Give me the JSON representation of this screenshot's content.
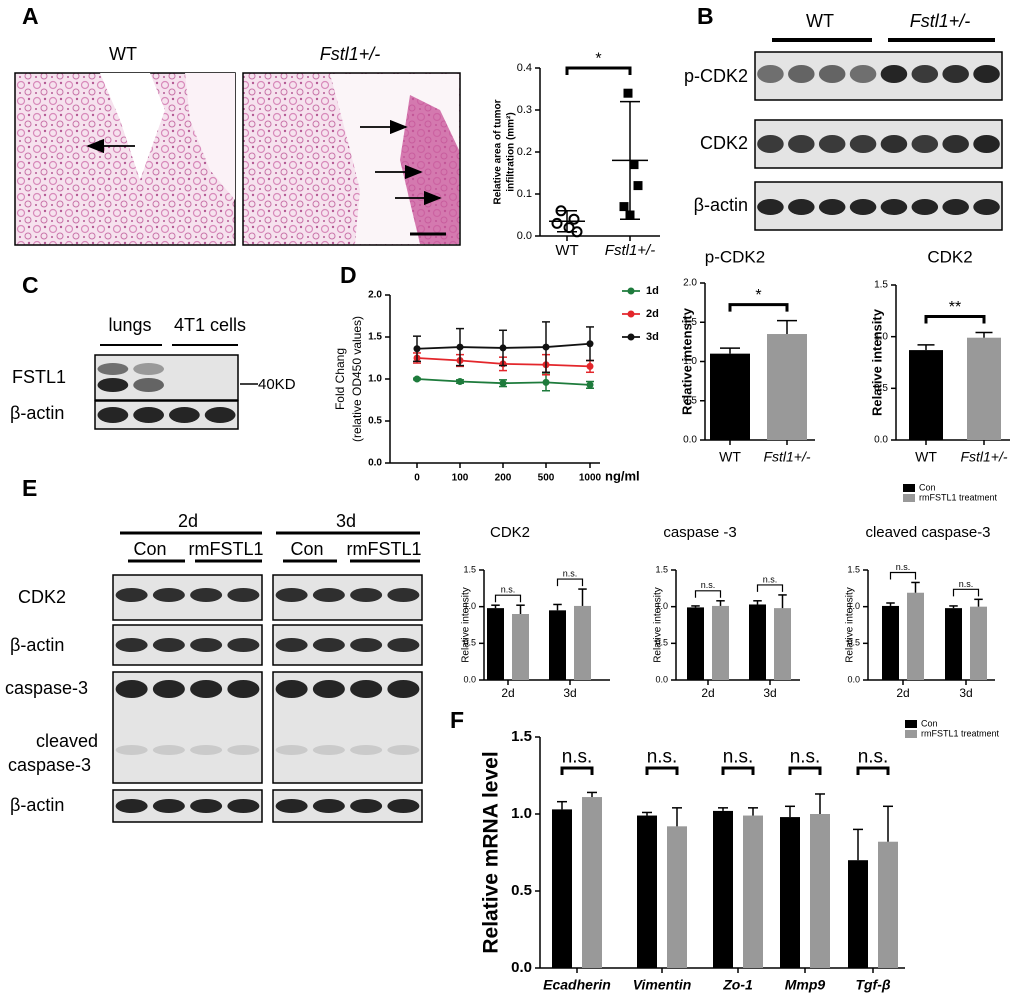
{
  "panel_labels": [
    "A",
    "B",
    "C",
    "D",
    "E",
    "F"
  ],
  "micrographs": {
    "labels": [
      "WT",
      "Fstl1+/-"
    ]
  },
  "blot_B": {
    "groups": [
      "WT",
      "Fstl1+/-"
    ],
    "rows": [
      "p-CDK2",
      "CDK2",
      "β-actin"
    ]
  },
  "blot_C": {
    "groups": [
      "lungs",
      "4T1 cells"
    ],
    "rows": [
      "FSTL1",
      "β-actin"
    ],
    "marker": "40KD"
  },
  "blot_E": {
    "days": [
      "2d",
      "3d"
    ],
    "groups": [
      "Con",
      "rmFSTL1",
      "Con",
      "rmFSTL1"
    ],
    "rows": [
      "CDK2",
      "β-actin",
      "caspase-3",
      [
        "cleaved",
        "caspase-3"
      ],
      "β-actin"
    ]
  },
  "chart_data": [
    {
      "type": "scatter",
      "ylabel": [
        "Relative area of tumor",
        "infiltration (mm²)"
      ],
      "categories": [
        "WT",
        "Fstl1+/-"
      ],
      "points": [
        [
          0.06,
          0.04,
          0.03,
          0.02,
          0.01
        ],
        [
          0.34,
          0.17,
          0.12,
          0.07,
          0.05
        ]
      ],
      "means": [
        0.035,
        0.18
      ],
      "errors": [
        0.025,
        0.14
      ],
      "significance": "*",
      "ylim": [
        0,
        0.4
      ],
      "yticks": [
        {
          "value": 0,
          "label": "0.0"
        },
        0.1,
        0.2,
        0.3,
        0.4
      ]
    },
    {
      "type": "bar",
      "title": "p-CDK2",
      "ylabel": [
        "Relative intensity"
      ],
      "categories": [
        "WT",
        "Fstl1+/-"
      ],
      "values": [
        1.1,
        1.35
      ],
      "errors": [
        0.07,
        0.17
      ],
      "colors": [
        "#000000",
        "#999999"
      ],
      "significance": "*",
      "ylim": [
        0,
        2
      ],
      "yticks": [
        {
          "value": 0,
          "label": "0.0"
        },
        0.5,
        {
          "value": 1,
          "label": "1.0"
        },
        1.5,
        {
          "value": 2,
          "label": "2.0"
        }
      ]
    },
    {
      "type": "bar",
      "title": "CDK2",
      "ylabel": [
        "Relative intensity"
      ],
      "categories": [
        "WT",
        "Fstl1+/-"
      ],
      "values": [
        0.87,
        0.99
      ],
      "errors": [
        0.05,
        0.05
      ],
      "colors": [
        "#000000",
        "#999999"
      ],
      "significance": "**",
      "ylim": [
        0,
        1.5
      ],
      "yticks": [
        {
          "value": 0,
          "label": "0.0"
        },
        0.5,
        {
          "value": 1,
          "label": "1.0"
        },
        1.5
      ]
    },
    {
      "type": "line",
      "ylabel": [
        "Fold Chang",
        "(relative OD450 values)"
      ],
      "xlabel": "ng/ml",
      "categories": [
        "0",
        "100",
        "200",
        "500",
        "1000"
      ],
      "series": [
        {
          "name": "1d",
          "color": "#1e7b3c",
          "values": [
            1.0,
            0.97,
            0.95,
            0.96,
            0.93
          ],
          "errors": [
            0.01,
            0.02,
            0.04,
            0.1,
            0.04
          ]
        },
        {
          "name": "2d",
          "color": "#e3262b",
          "values": [
            1.25,
            1.22,
            1.18,
            1.17,
            1.15
          ],
          "errors": [
            0.06,
            0.07,
            0.08,
            0.12,
            0.07
          ]
        },
        {
          "name": "3d",
          "color": "#111111",
          "values": [
            1.36,
            1.38,
            1.37,
            1.38,
            1.42
          ],
          "errors": [
            0.15,
            0.22,
            0.21,
            0.3,
            0.2
          ]
        }
      ],
      "ylim": [
        0,
        2
      ],
      "yticks": [
        {
          "value": 0,
          "label": "0.0"
        },
        0.5,
        {
          "value": 1,
          "label": "1.0"
        },
        1.5,
        {
          "value": 2,
          "label": "2.0"
        }
      ]
    },
    {
      "type": "bar",
      "title": "CDK2",
      "ylabel": [
        "Relative intensity"
      ],
      "categories": [
        "2d",
        "3d"
      ],
      "series": [
        {
          "color": "#000000",
          "values": [
            0.98,
            0.95
          ],
          "errors": [
            0.04,
            0.08
          ]
        },
        {
          "color": "#999999",
          "values": [
            0.9,
            1.01
          ],
          "errors": [
            0.12,
            0.23
          ]
        }
      ],
      "annotations": [
        "n.s.",
        "n.s."
      ],
      "ylim": [
        0,
        1.5
      ],
      "yticks": [
        {
          "value": 0,
          "label": "0.0"
        },
        0.5,
        {
          "value": 1,
          "label": "1.0"
        },
        1.5
      ]
    },
    {
      "type": "bar",
      "title": "caspase -3",
      "ylabel": [
        "Relative intensity"
      ],
      "categories": [
        "2d",
        "3d"
      ],
      "series": [
        {
          "color": "#000000",
          "values": [
            0.99,
            1.03
          ],
          "errors": [
            0.02,
            0.05
          ]
        },
        {
          "color": "#999999",
          "values": [
            1.01,
            0.98
          ],
          "errors": [
            0.07,
            0.18
          ]
        }
      ],
      "annotations": [
        "n.s.",
        "n.s."
      ],
      "ylim": [
        0,
        1.5
      ],
      "yticks": [
        {
          "value": 0,
          "label": "0.0"
        },
        0.5,
        {
          "value": 1,
          "label": "1.0"
        },
        1.5
      ]
    },
    {
      "type": "bar",
      "title": "cleaved caspase-3",
      "ylabel": [
        "Relative intensity"
      ],
      "categories": [
        "2d",
        "3d"
      ],
      "series": [
        {
          "name": "Con",
          "color": "#000000",
          "values": [
            1.01,
            0.98
          ],
          "errors": [
            0.04,
            0.03
          ]
        },
        {
          "name": "rmFSTL1 treatment",
          "color": "#999999",
          "values": [
            1.19,
            1.0
          ],
          "errors": [
            0.14,
            0.1
          ]
        }
      ],
      "annotations": [
        "n.s.",
        "n.s."
      ],
      "legend": "top-right",
      "ylim": [
        0,
        1.5
      ],
      "yticks": [
        {
          "value": 0,
          "label": "0.0"
        },
        0.5,
        {
          "value": 1,
          "label": "1.0"
        },
        1.5
      ]
    },
    {
      "type": "bar",
      "ylabel": [
        "Relative mRNA level"
      ],
      "categories": [
        "Ecadherin",
        "Vimentin",
        "Zo-1",
        "Mmp9",
        "Tgf-β"
      ],
      "series": [
        {
          "name": "Con",
          "color": "#000000",
          "values": [
            1.03,
            0.99,
            1.02,
            0.98,
            0.7
          ],
          "errors": [
            0.05,
            0.02,
            0.02,
            0.07,
            0.2
          ]
        },
        {
          "name": "rmFSTL1 treatment",
          "color": "#999999",
          "values": [
            1.11,
            0.92,
            0.99,
            1.0,
            0.82
          ],
          "errors": [
            0.03,
            0.12,
            0.05,
            0.13,
            0.23
          ]
        }
      ],
      "annotations": [
        "n.s.",
        "n.s.",
        "n.s.",
        "n.s.",
        "n.s."
      ],
      "legend": "top-right",
      "ylim": [
        0,
        1.5
      ],
      "yticks": [
        {
          "value": 0,
          "label": "0.0"
        },
        0.5,
        {
          "value": 1,
          "label": "1.0"
        },
        1.5
      ]
    }
  ]
}
